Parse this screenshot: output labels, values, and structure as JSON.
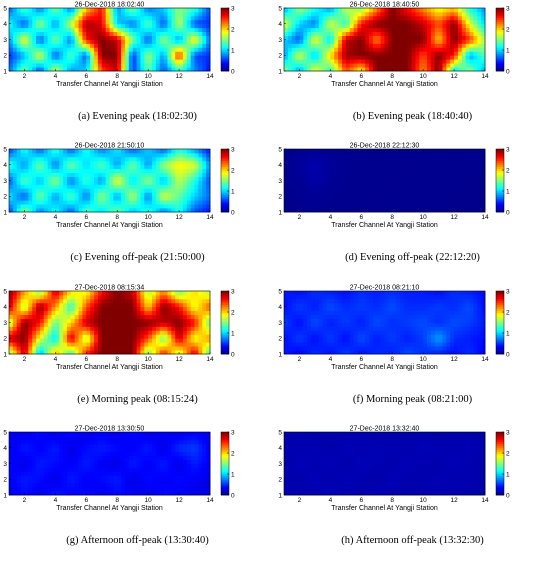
{
  "chart_data": [
    {
      "type": "heatmap",
      "title": "26-Dec-2018 18:02:40",
      "xlabel": "Transfer Channel At Yangji Station",
      "caption": "(a) Evening peak (18:02:30)",
      "xlim": [
        1,
        14
      ],
      "ylim": [
        1,
        5
      ],
      "clim": [
        0,
        3
      ],
      "x_ticks": [
        "2",
        "4",
        "6",
        "8",
        "10",
        "12",
        "14"
      ],
      "y_ticks": [
        "1",
        "2",
        "3",
        "4",
        "5"
      ],
      "cbar_ticks": [
        "0",
        "1",
        "2",
        "3"
      ],
      "x": [
        1,
        2,
        3,
        4,
        5,
        6,
        7,
        8,
        9,
        10,
        11,
        12,
        13,
        14
      ],
      "y": [
        1,
        2,
        3,
        4,
        5
      ],
      "z": [
        [
          0.7,
          1.5,
          0.5,
          1.8,
          0.8,
          1.0,
          2.4,
          2.8,
          0.5,
          1.4,
          0.6,
          1.2,
          0.8,
          0.4
        ],
        [
          0.5,
          0.9,
          1.8,
          0.6,
          1.4,
          0.6,
          3.0,
          3.0,
          0.5,
          1.6,
          0.8,
          2.6,
          0.6,
          0.5
        ],
        [
          0.8,
          1.9,
          0.6,
          1.5,
          0.7,
          2.6,
          3.0,
          2.8,
          1.5,
          0.6,
          1.6,
          0.8,
          2.0,
          0.7
        ],
        [
          1.2,
          0.6,
          1.6,
          0.8,
          1.7,
          2.9,
          2.7,
          1.0,
          0.7,
          1.4,
          0.6,
          1.7,
          0.6,
          0.5
        ],
        [
          0.6,
          1.4,
          0.7,
          1.5,
          0.7,
          2.0,
          2.6,
          0.8,
          1.5,
          0.7,
          1.0,
          1.5,
          1.3,
          0.6
        ]
      ]
    },
    {
      "type": "heatmap",
      "title": "26-Dec-2018 18:40:50",
      "xlabel": "Transfer Channel At Yangji Station",
      "caption": "(b) Evening peak (18:40:40)",
      "xlim": [
        1,
        14
      ],
      "ylim": [
        1,
        5
      ],
      "clim": [
        0,
        3
      ],
      "x_ticks": [
        "2",
        "4",
        "6",
        "8",
        "10",
        "12",
        "14"
      ],
      "y_ticks": [
        "1",
        "2",
        "3",
        "4",
        "5"
      ],
      "cbar_ticks": [
        "0",
        "1",
        "2",
        "3"
      ],
      "x": [
        1,
        2,
        3,
        4,
        5,
        6,
        7,
        8,
        9,
        10,
        11,
        12,
        13,
        14
      ],
      "y": [
        1,
        2,
        3,
        4,
        5
      ],
      "z": [
        [
          1.6,
          0.8,
          1.9,
          1.2,
          2.4,
          1.8,
          3.0,
          3.0,
          3.0,
          2.2,
          3.0,
          1.0,
          1.6,
          0.8
        ],
        [
          0.8,
          1.8,
          0.9,
          2.0,
          2.9,
          3.0,
          3.0,
          3.0,
          3.0,
          2.4,
          3.0,
          2.6,
          0.8,
          1.4
        ],
        [
          1.0,
          0.6,
          1.9,
          1.0,
          2.8,
          3.0,
          2.2,
          3.0,
          3.0,
          3.0,
          2.0,
          3.0,
          2.5,
          1.6
        ],
        [
          1.8,
          1.0,
          0.7,
          1.8,
          1.2,
          2.6,
          3.0,
          3.0,
          3.0,
          2.8,
          2.4,
          3.0,
          1.8,
          1.0
        ],
        [
          0.8,
          1.6,
          1.2,
          0.8,
          1.7,
          1.5,
          2.2,
          3.0,
          2.6,
          2.2,
          1.8,
          2.0,
          1.2,
          0.8
        ]
      ]
    },
    {
      "type": "heatmap",
      "title": "26-Dec-2018 21:50:10",
      "xlabel": "Transfer Channel At Yangji Station",
      "caption": "(c) Evening off-peak (21:50:00)",
      "xlim": [
        1,
        14
      ],
      "ylim": [
        1,
        5
      ],
      "clim": [
        0,
        3
      ],
      "x_ticks": [
        "2",
        "4",
        "6",
        "8",
        "10",
        "12",
        "14"
      ],
      "y_ticks": [
        "1",
        "2",
        "3",
        "4",
        "5"
      ],
      "cbar_ticks": [
        "0",
        "1",
        "2",
        "3"
      ],
      "x": [
        1,
        2,
        3,
        4,
        5,
        6,
        7,
        8,
        9,
        10,
        11,
        12,
        13,
        14
      ],
      "y": [
        1,
        2,
        3,
        4,
        5
      ],
      "z": [
        [
          0.5,
          1.6,
          0.7,
          1.2,
          0.6,
          1.4,
          1.0,
          1.5,
          0.9,
          1.3,
          0.7,
          1.2,
          0.6,
          0.4
        ],
        [
          1.1,
          0.6,
          1.5,
          0.8,
          1.4,
          0.7,
          1.6,
          0.8,
          1.7,
          0.7,
          1.8,
          1.4,
          1.0,
          0.7
        ],
        [
          0.6,
          1.4,
          0.9,
          1.6,
          0.7,
          1.3,
          0.8,
          1.9,
          1.0,
          1.6,
          0.9,
          1.7,
          1.2,
          0.6
        ],
        [
          1.3,
          0.8,
          1.5,
          0.7,
          1.5,
          1.0,
          1.4,
          0.8,
          1.5,
          0.8,
          1.6,
          1.9,
          1.8,
          0.8
        ],
        [
          0.5,
          1.2,
          0.6,
          1.3,
          0.6,
          1.2,
          0.7,
          1.1,
          0.6,
          1.0,
          0.6,
          1.2,
          0.8,
          0.4
        ]
      ]
    },
    {
      "type": "heatmap",
      "title": "26-Dec-2018 22:12:30",
      "xlabel": "Transfer Channel At Yangji Station",
      "caption": "(d) Evening off-peak (22:12:20)",
      "xlim": [
        1,
        14
      ],
      "ylim": [
        1,
        5
      ],
      "clim": [
        0,
        3
      ],
      "x_ticks": [
        "2",
        "4",
        "6",
        "8",
        "10",
        "12",
        "14"
      ],
      "y_ticks": [
        "1",
        "2",
        "3",
        "4",
        "5"
      ],
      "cbar_ticks": [
        "0",
        "1",
        "2",
        "3"
      ],
      "x": [
        1,
        2,
        3,
        4,
        5,
        6,
        7,
        8,
        9,
        10,
        11,
        12,
        13,
        14
      ],
      "y": [
        1,
        2,
        3,
        4,
        5
      ],
      "z": [
        [
          0.04,
          0.04,
          0.05,
          0.04,
          0.04,
          0.04,
          0.04,
          0.05,
          0.04,
          0.04,
          0.04,
          0.04,
          0.04,
          0.04
        ],
        [
          0.04,
          0.05,
          0.06,
          0.05,
          0.04,
          0.05,
          0.04,
          0.04,
          0.05,
          0.04,
          0.05,
          0.04,
          0.04,
          0.04
        ],
        [
          0.05,
          0.06,
          0.12,
          0.06,
          0.05,
          0.04,
          0.05,
          0.04,
          0.04,
          0.05,
          0.04,
          0.05,
          0.04,
          0.04
        ],
        [
          0.04,
          0.08,
          0.14,
          0.08,
          0.05,
          0.05,
          0.04,
          0.05,
          0.04,
          0.04,
          0.05,
          0.04,
          0.05,
          0.04
        ],
        [
          0.04,
          0.05,
          0.06,
          0.05,
          0.04,
          0.04,
          0.04,
          0.04,
          0.04,
          0.04,
          0.04,
          0.04,
          0.04,
          0.04
        ]
      ]
    },
    {
      "type": "heatmap",
      "title": "27-Dec-2018 08:15:34",
      "xlabel": "Transfer Channel At Yangji Station",
      "caption": "(e) Morning peak (08:15:24)",
      "xlim": [
        1,
        14
      ],
      "ylim": [
        1,
        5
      ],
      "clim": [
        0,
        3
      ],
      "x_ticks": [
        "2",
        "4",
        "6",
        "8",
        "10",
        "12",
        "14"
      ],
      "y_ticks": [
        "1",
        "2",
        "3",
        "4",
        "5"
      ],
      "cbar_ticks": [
        "0",
        "1",
        "2",
        "3"
      ],
      "x": [
        1,
        2,
        3,
        4,
        5,
        6,
        7,
        8,
        9,
        10,
        11,
        12,
        13,
        14
      ],
      "y": [
        1,
        2,
        3,
        4,
        5
      ],
      "z": [
        [
          1.4,
          2.8,
          0.8,
          2.2,
          1.2,
          2.6,
          3.0,
          3.0,
          3.0,
          1.4,
          2.6,
          1.6,
          2.8,
          1.2
        ],
        [
          2.8,
          3.0,
          1.8,
          1.0,
          2.8,
          1.6,
          3.0,
          3.0,
          3.0,
          2.4,
          1.4,
          2.8,
          1.8,
          2.2
        ],
        [
          1.6,
          3.0,
          2.6,
          1.4,
          2.0,
          2.8,
          3.0,
          3.0,
          3.0,
          3.0,
          2.8,
          3.0,
          2.6,
          1.4
        ],
        [
          2.8,
          1.6,
          3.0,
          2.2,
          1.2,
          2.4,
          3.0,
          3.0,
          3.0,
          2.0,
          3.0,
          2.6,
          1.8,
          2.4
        ],
        [
          3.0,
          2.2,
          1.4,
          2.8,
          2.0,
          1.8,
          2.6,
          3.0,
          2.8,
          1.6,
          2.2,
          1.4,
          2.0,
          1.6
        ]
      ]
    },
    {
      "type": "heatmap",
      "title": "27-Dec-2018 08:21:10",
      "xlabel": "Transfer Channel At Yangji Station",
      "caption": "(f) Morning peak (08:21:00)",
      "xlim": [
        1,
        14
      ],
      "ylim": [
        1,
        5
      ],
      "clim": [
        0,
        3
      ],
      "x_ticks": [
        "2",
        "4",
        "6",
        "8",
        "10",
        "12",
        "14"
      ],
      "y_ticks": [
        "1",
        "2",
        "3",
        "4",
        "5"
      ],
      "cbar_ticks": [
        "0",
        "1",
        "2",
        "3"
      ],
      "x": [
        1,
        2,
        3,
        4,
        5,
        6,
        7,
        8,
        9,
        10,
        11,
        12,
        13,
        14
      ],
      "y": [
        1,
        2,
        3,
        4,
        5
      ],
      "z": [
        [
          0.45,
          0.35,
          0.5,
          0.4,
          0.55,
          0.4,
          0.5,
          0.45,
          0.6,
          0.5,
          0.45,
          0.4,
          0.5,
          0.35
        ],
        [
          0.4,
          0.55,
          0.4,
          0.55,
          0.4,
          0.6,
          0.45,
          0.55,
          0.45,
          0.55,
          0.85,
          0.5,
          0.45,
          0.4
        ],
        [
          0.55,
          0.4,
          0.6,
          0.45,
          0.55,
          0.45,
          0.6,
          0.5,
          0.55,
          0.6,
          0.5,
          0.6,
          0.55,
          0.45
        ],
        [
          0.4,
          0.55,
          0.45,
          0.6,
          0.5,
          0.55,
          0.5,
          0.6,
          0.5,
          0.5,
          0.55,
          0.5,
          0.6,
          0.4
        ],
        [
          0.45,
          0.4,
          0.5,
          0.45,
          0.4,
          0.5,
          0.45,
          0.5,
          0.45,
          0.45,
          0.4,
          0.5,
          0.45,
          0.4
        ]
      ]
    },
    {
      "type": "heatmap",
      "title": "27-Dec-2018 13:30:50",
      "xlabel": "Transfer Channel At Yangji Station",
      "caption": "(g) Afternoon off-peak (13:30:40)",
      "xlim": [
        1,
        14
      ],
      "ylim": [
        1,
        5
      ],
      "clim": [
        0,
        3
      ],
      "x_ticks": [
        "2",
        "4",
        "6",
        "8",
        "10",
        "12",
        "14"
      ],
      "y_ticks": [
        "1",
        "2",
        "3",
        "4",
        "5"
      ],
      "cbar_ticks": [
        "0",
        "1",
        "2",
        "3"
      ],
      "x": [
        1,
        2,
        3,
        4,
        5,
        6,
        7,
        8,
        9,
        10,
        11,
        12,
        13,
        14
      ],
      "y": [
        1,
        2,
        3,
        4,
        5
      ],
      "z": [
        [
          0.3,
          0.4,
          0.3,
          0.45,
          0.35,
          0.4,
          0.3,
          0.4,
          0.35,
          0.3,
          0.4,
          0.35,
          0.3,
          0.3
        ],
        [
          0.35,
          0.45,
          0.4,
          0.3,
          0.45,
          0.35,
          0.4,
          0.45,
          0.3,
          0.4,
          0.35,
          0.4,
          0.35,
          0.3
        ],
        [
          0.4,
          0.3,
          0.45,
          0.4,
          0.35,
          0.45,
          0.35,
          0.3,
          0.45,
          0.35,
          0.45,
          0.3,
          0.45,
          0.35
        ],
        [
          0.3,
          0.45,
          0.35,
          0.45,
          0.3,
          0.4,
          0.45,
          0.4,
          0.35,
          0.45,
          0.3,
          0.5,
          0.55,
          0.35
        ],
        [
          0.35,
          0.3,
          0.4,
          0.3,
          0.4,
          0.3,
          0.35,
          0.3,
          0.4,
          0.3,
          0.35,
          0.3,
          0.35,
          0.3
        ]
      ]
    },
    {
      "type": "heatmap",
      "title": "27-Dec-2018 13:32:40",
      "xlabel": "Transfer Channel At Yangji Station",
      "caption": "(h) Afternoon off-peak (13:32:30)",
      "xlim": [
        1,
        14
      ],
      "ylim": [
        1,
        5
      ],
      "clim": [
        0,
        3
      ],
      "x_ticks": [
        "2",
        "4",
        "6",
        "8",
        "10",
        "12",
        "14"
      ],
      "y_ticks": [
        "1",
        "2",
        "3",
        "4",
        "5"
      ],
      "cbar_ticks": [
        "0",
        "1",
        "2",
        "3"
      ],
      "x": [
        1,
        2,
        3,
        4,
        5,
        6,
        7,
        8,
        9,
        10,
        11,
        12,
        13,
        14
      ],
      "y": [
        1,
        2,
        3,
        4,
        5
      ],
      "z": [
        [
          0.12,
          0.16,
          0.12,
          0.18,
          0.14,
          0.13,
          0.16,
          0.14,
          0.12,
          0.15,
          0.13,
          0.16,
          0.12,
          0.12
        ],
        [
          0.15,
          0.12,
          0.17,
          0.13,
          0.16,
          0.14,
          0.12,
          0.17,
          0.14,
          0.13,
          0.16,
          0.13,
          0.15,
          0.12
        ],
        [
          0.12,
          0.17,
          0.14,
          0.16,
          0.13,
          0.17,
          0.15,
          0.13,
          0.16,
          0.14,
          0.13,
          0.17,
          0.13,
          0.14
        ],
        [
          0.14,
          0.13,
          0.16,
          0.12,
          0.17,
          0.14,
          0.16,
          0.15,
          0.13,
          0.17,
          0.15,
          0.14,
          0.16,
          0.12
        ],
        [
          0.12,
          0.15,
          0.12,
          0.14,
          0.12,
          0.15,
          0.12,
          0.14,
          0.12,
          0.13,
          0.12,
          0.14,
          0.12,
          0.12
        ]
      ]
    }
  ]
}
